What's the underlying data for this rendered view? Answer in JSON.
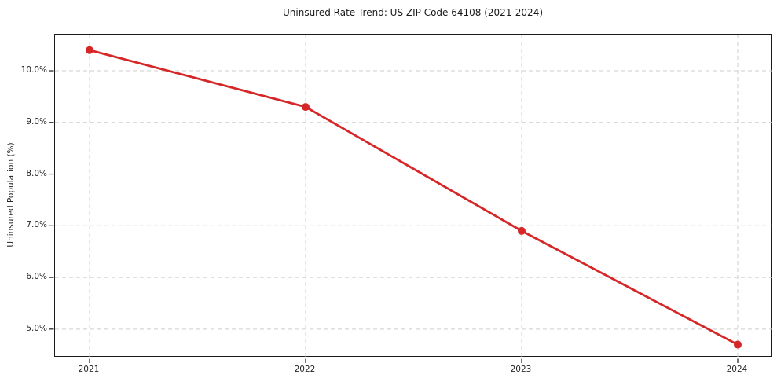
{
  "chart_data": {
    "type": "line",
    "title": "Uninsured Rate Trend: US ZIP Code 64108 (2021-2024)",
    "xlabel": "",
    "ylabel": "Uninsured Population (%)",
    "categories": [
      "2021",
      "2022",
      "2023",
      "2024"
    ],
    "series": [
      {
        "name": "Uninsured rate",
        "values": [
          10.4,
          9.3,
          6.9,
          4.7
        ]
      }
    ],
    "y_ticks": [
      5,
      6,
      7,
      8,
      9,
      10
    ],
    "y_tick_labels": [
      "5.0%",
      "6.0%",
      "7.0%",
      "8.0%",
      "9.0%",
      "10.0%"
    ],
    "ylim": [
      4.45,
      10.7
    ],
    "grid": "dashed, horizontal and vertical",
    "legend_position": "none",
    "line_color": "#d62728",
    "marker": "circle",
    "grid_color": "#cdcdcd",
    "axis_color": "#1a1a1a"
  }
}
